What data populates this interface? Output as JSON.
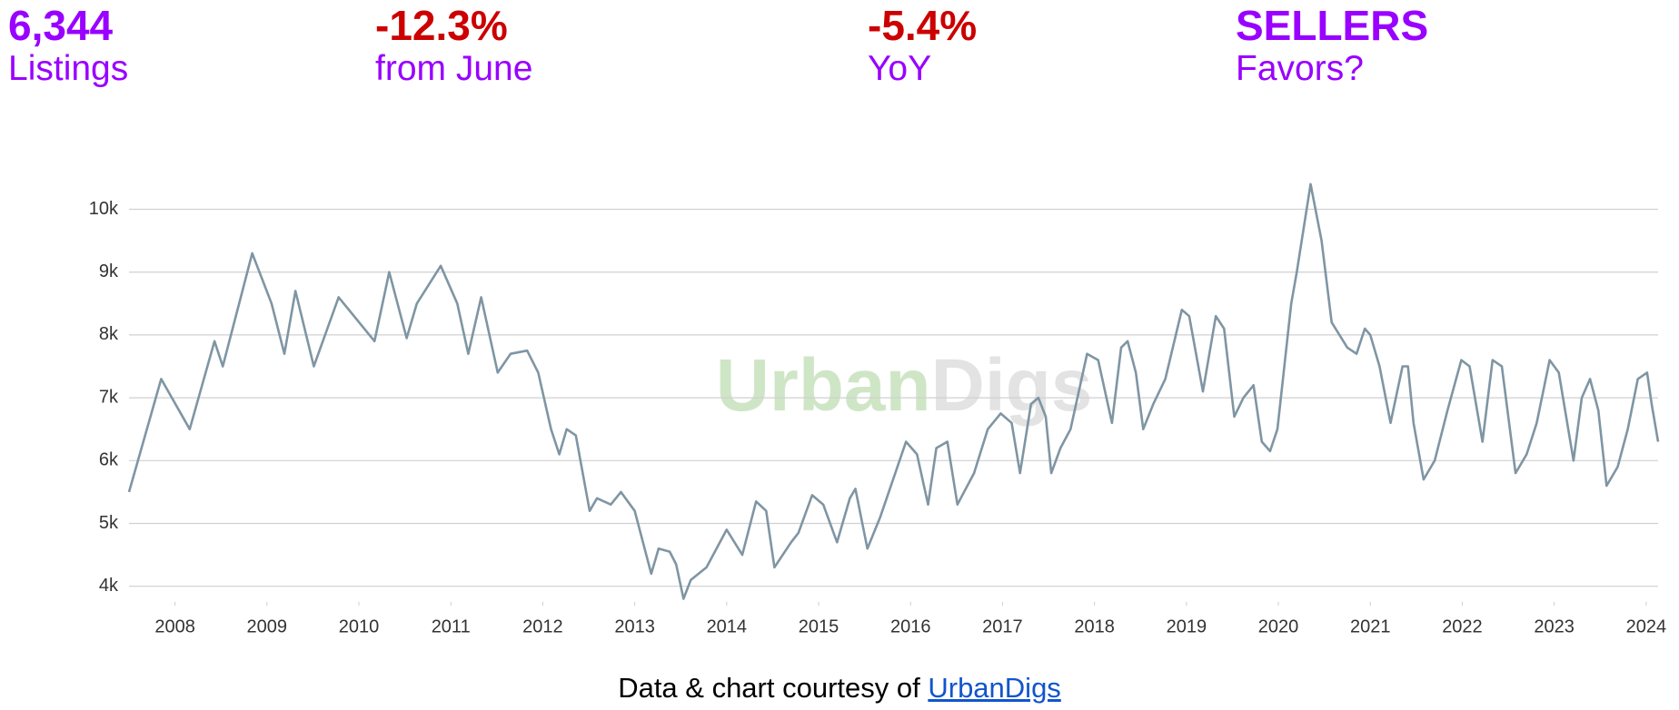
{
  "stats": [
    {
      "value": "6,344",
      "label": "Listings",
      "value_color": "#9900ff",
      "label_color": "#9900ff"
    },
    {
      "value": "-12.3%",
      "label": "from June",
      "value_color": "#cc0000",
      "label_color": "#9900ff"
    },
    {
      "value": "-5.4%",
      "label": "YoY",
      "value_color": "#cc0000",
      "label_color": "#9900ff"
    },
    {
      "value": "SELLERS",
      "label": "Favors?",
      "value_color": "#9900ff",
      "label_color": "#9900ff"
    }
  ],
  "chart_data": {
    "type": "line",
    "watermark": [
      "Urban",
      "Digs"
    ],
    "x": [
      2007.5,
      2007.85,
      2008.16,
      2008.43,
      2008.52,
      2008.84,
      2009.05,
      2009.19,
      2009.31,
      2009.51,
      2009.78,
      2010.17,
      2010.33,
      2010.52,
      2010.63,
      2010.89,
      2011.07,
      2011.19,
      2011.33,
      2011.51,
      2011.65,
      2011.83,
      2011.95,
      2012.09,
      2012.18,
      2012.26,
      2012.36,
      2012.51,
      2012.59,
      2012.74,
      2012.85,
      2013.0,
      2013.18,
      2013.26,
      2013.38,
      2013.45,
      2013.53,
      2013.61,
      2013.78,
      2014.0,
      2014.17,
      2014.32,
      2014.43,
      2014.52,
      2014.7,
      2014.78,
      2014.93,
      2015.05,
      2015.2,
      2015.34,
      2015.4,
      2015.53,
      2015.67,
      2015.81,
      2015.95,
      2016.07,
      2016.19,
      2016.28,
      2016.4,
      2016.51,
      2016.69,
      2016.84,
      2016.98,
      2017.1,
      2017.19,
      2017.31,
      2017.39,
      2017.47,
      2017.53,
      2017.63,
      2017.74,
      2017.92,
      2018.04,
      2018.19,
      2018.29,
      2018.36,
      2018.45,
      2018.53,
      2018.64,
      2018.77,
      2018.95,
      2019.03,
      2019.18,
      2019.32,
      2019.41,
      2019.52,
      2019.62,
      2019.73,
      2019.82,
      2019.91,
      2019.99,
      2020.14,
      2020.2,
      2020.35,
      2020.47,
      2020.58,
      2020.75,
      2020.85,
      2020.94,
      2021.0,
      2021.1,
      2021.22,
      2021.35,
      2021.41,
      2021.47,
      2021.58,
      2021.7,
      2021.84,
      2021.99,
      2022.08,
      2022.22,
      2022.33,
      2022.43,
      2022.58,
      2022.7,
      2022.81,
      2022.95,
      2023.05,
      2023.21,
      2023.3,
      2023.39,
      2023.48,
      2023.57,
      2023.69,
      2023.8,
      2023.91,
      2024.01,
      2024.06,
      2024.13
    ],
    "series": [
      {
        "name": "Listings",
        "color": "#7f95a3",
        "values": [
          5500,
          7300,
          6500,
          7900,
          7500,
          9300,
          8500,
          7700,
          8700,
          7500,
          8600,
          7900,
          9000,
          7950,
          8500,
          9100,
          8500,
          7700,
          8600,
          7400,
          7700,
          7750,
          7400,
          6500,
          6100,
          6500,
          6400,
          5200,
          5400,
          5300,
          5500,
          5200,
          4200,
          4600,
          4550,
          4350,
          3800,
          4100,
          4300,
          4900,
          4500,
          5350,
          5200,
          4300,
          4700,
          4850,
          5450,
          5300,
          4700,
          5400,
          5550,
          4600,
          5100,
          5700,
          6300,
          6100,
          5300,
          6200,
          6300,
          5300,
          5800,
          6500,
          6750,
          6600,
          5800,
          6900,
          7000,
          6700,
          5800,
          6200,
          6500,
          7700,
          7600,
          6600,
          7800,
          7900,
          7400,
          6500,
          6900,
          7300,
          8400,
          8300,
          7100,
          8300,
          8100,
          6700,
          7000,
          7200,
          6300,
          6150,
          6500,
          8500,
          9000,
          10400,
          9500,
          8200,
          7800,
          7700,
          8100,
          8000,
          7500,
          6600,
          7500,
          7500,
          6600,
          5700,
          6000,
          6800,
          7600,
          7500,
          6300,
          7600,
          7500,
          5800,
          6100,
          6600,
          7600,
          7400,
          6000,
          7000,
          7300,
          6800,
          5600,
          5900,
          6500,
          7300,
          7400,
          6900,
          6300
        ]
      }
    ],
    "xlim": [
      2007.5,
      2024.13
    ],
    "xticks": [
      2008,
      2009,
      2010,
      2011,
      2012,
      2013,
      2014,
      2015,
      2016,
      2017,
      2018,
      2019,
      2020,
      2021,
      2022,
      2023,
      2024
    ],
    "ylim": [
      3750,
      10600
    ],
    "yticks": [
      {
        "value": 4000,
        "label": "4k"
      },
      {
        "value": 5000,
        "label": "5k"
      },
      {
        "value": 6000,
        "label": "6k"
      },
      {
        "value": 7000,
        "label": "7k"
      },
      {
        "value": 8000,
        "label": "8k"
      },
      {
        "value": 9000,
        "label": "9k"
      },
      {
        "value": 10000,
        "label": "10k"
      }
    ],
    "grid": true
  },
  "footer": {
    "text": "Data & chart courtesy of",
    "link": "UrbanDigs"
  }
}
